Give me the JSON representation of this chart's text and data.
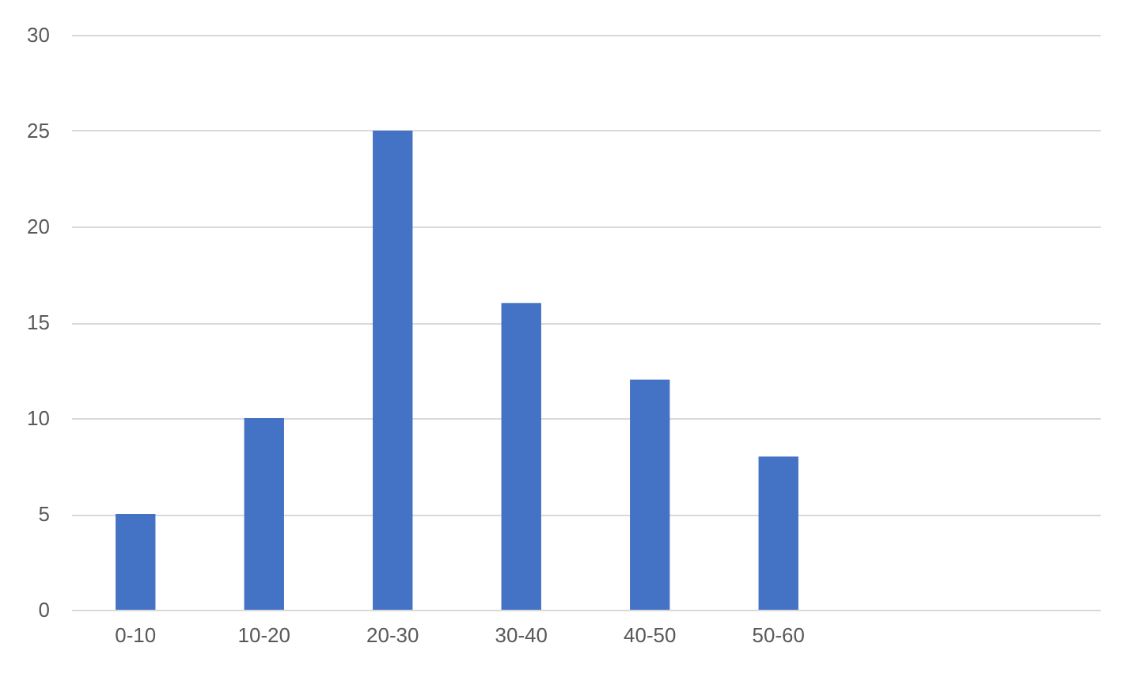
{
  "chart_data": {
    "type": "bar",
    "categories": [
      "0-10",
      "10-20",
      "20-30",
      "30-40",
      "40-50",
      "50-60",
      null,
      null
    ],
    "values": [
      5,
      10,
      25,
      16,
      12,
      8,
      null,
      null
    ],
    "color": "#4472c4",
    "ylim": [
      0,
      30
    ],
    "yticks": [
      0,
      5,
      10,
      15,
      20,
      25,
      30
    ],
    "grid": "y"
  }
}
